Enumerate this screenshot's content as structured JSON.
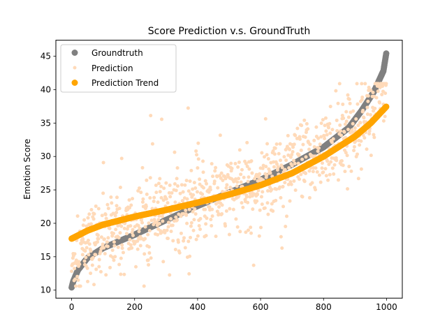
{
  "chart_data": {
    "type": "scatter",
    "title": "Score Prediction v.s. GroundTruth",
    "xlabel": "",
    "ylabel": "Emotion Score",
    "xlim": [
      -50,
      1050
    ],
    "ylim": [
      8.8,
      47.4
    ],
    "x_ticks": [
      0,
      200,
      400,
      600,
      800,
      1000
    ],
    "y_ticks": [
      10,
      15,
      20,
      25,
      30,
      35,
      40,
      45
    ],
    "grid": false,
    "legend_position": "top-left",
    "colors": {
      "groundtruth": "#808080",
      "prediction": "#ffdab9",
      "trend": "#ffa500"
    },
    "groundtruth_anchors": {
      "x": [
        0,
        5,
        20,
        50,
        100,
        200,
        300,
        400,
        500,
        600,
        700,
        800,
        880,
        920,
        960,
        990,
        1000
      ],
      "y": [
        10.4,
        11.3,
        13.0,
        14.8,
        16.3,
        18.3,
        20.5,
        22.6,
        24.6,
        26.5,
        28.8,
        31.4,
        34.3,
        36.8,
        39.7,
        42.8,
        45.7
      ]
    },
    "trend_anchors": {
      "x": [
        0,
        50,
        100,
        200,
        300,
        400,
        500,
        600,
        700,
        800,
        900,
        950,
        1000
      ],
      "y": [
        17.7,
        18.9,
        19.8,
        21.0,
        22.0,
        23.1,
        24.3,
        25.7,
        27.5,
        30.0,
        33.0,
        35.0,
        37.5
      ]
    },
    "prediction_count": 1000,
    "series": [
      {
        "name": "Groundtruth"
      },
      {
        "name": "Prediction"
      },
      {
        "name": "Prediction Trend"
      }
    ]
  }
}
